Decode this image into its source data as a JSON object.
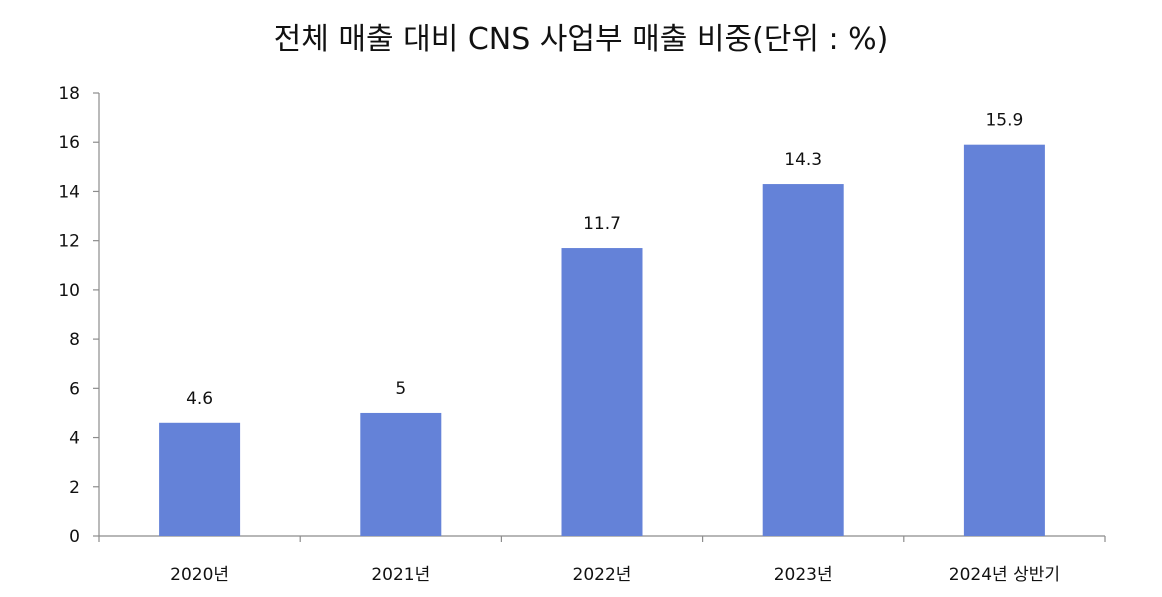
{
  "chart_data": {
    "type": "bar",
    "title": "전체 매출 대비 CNS 사업부 매출 비중(단위 : %)",
    "xlabel": "",
    "ylabel": "",
    "categories": [
      "2020년",
      "2021년",
      "2022년",
      "2023년",
      "2024년 상반기"
    ],
    "values": [
      4.6,
      5,
      11.7,
      14.3,
      15.9
    ],
    "value_labels": [
      "4.6",
      "5",
      "11.7",
      "14.3",
      "15.9"
    ],
    "ylim": [
      0,
      18
    ],
    "yticks": [
      "0",
      "2",
      "4",
      "6",
      "8",
      "10",
      "12",
      "14",
      "16",
      "18"
    ],
    "grid": false,
    "legend": "none",
    "bar_color": "#6482d8",
    "axis_color": "#8c8c8c"
  }
}
